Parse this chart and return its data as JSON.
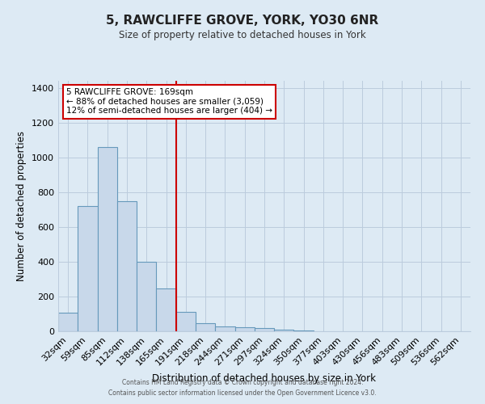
{
  "title": "5, RAWCLIFFE GROVE, YORK, YO30 6NR",
  "subtitle": "Size of property relative to detached houses in York",
  "xlabel": "Distribution of detached houses by size in York",
  "ylabel": "Number of detached properties",
  "bar_labels": [
    "32sqm",
    "59sqm",
    "85sqm",
    "112sqm",
    "138sqm",
    "165sqm",
    "191sqm",
    "218sqm",
    "244sqm",
    "271sqm",
    "297sqm",
    "324sqm",
    "350sqm",
    "377sqm",
    "403sqm",
    "430sqm",
    "456sqm",
    "483sqm",
    "509sqm",
    "536sqm",
    "562sqm"
  ],
  "bar_values": [
    107,
    720,
    1060,
    750,
    400,
    245,
    110,
    48,
    27,
    22,
    20,
    10,
    5,
    0,
    0,
    0,
    0,
    0,
    0,
    0,
    0
  ],
  "bar_color": "#c8d8ea",
  "bar_edge_color": "#6699bb",
  "ylim": [
    0,
    1440
  ],
  "yticks": [
    0,
    200,
    400,
    600,
    800,
    1000,
    1200,
    1400
  ],
  "vline_color": "#cc0000",
  "annotation_title": "5 RAWCLIFFE GROVE: 169sqm",
  "annotation_line1": "← 88% of detached houses are smaller (3,059)",
  "annotation_line2": "12% of semi-detached houses are larger (404) →",
  "annotation_box_color": "#ffffff",
  "annotation_box_edge": "#cc0000",
  "footer1": "Contains HM Land Registry data © Crown copyright and database right 2024.",
  "footer2": "Contains public sector information licensed under the Open Government Licence v3.0.",
  "background_color": "#ddeaf4",
  "plot_bg_color": "#ddeaf4",
  "grid_color": "#bbccdd"
}
